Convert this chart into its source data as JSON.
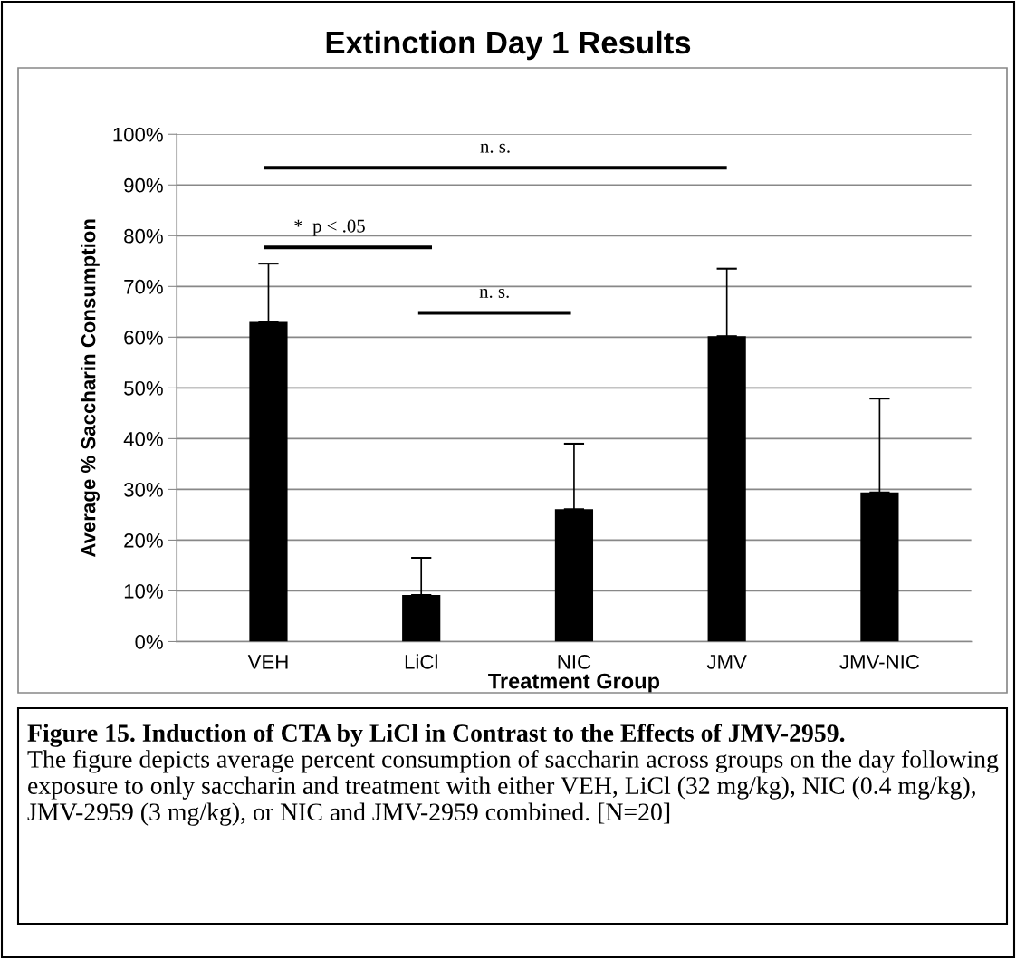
{
  "chart_data": {
    "type": "bar",
    "title": "Extinction Day 1 Results",
    "xlabel": "Treatment Group",
    "ylabel": "Average % Saccharin Consumption",
    "categories": [
      "VEH",
      "LiCl",
      "NIC",
      "JMV",
      "JMV-NIC"
    ],
    "values": [
      63,
      9.2,
      26.1,
      60.2,
      29.4
    ],
    "errors": [
      [
        63,
        74.5
      ],
      [
        9.2,
        16.5
      ],
      [
        26.1,
        39
      ],
      [
        60.2,
        73.5
      ],
      [
        29.4,
        47.9
      ]
    ],
    "color": "#000000",
    "ylim": [
      0,
      100
    ],
    "yticks": [
      {
        "value": 0,
        "label": "0%"
      },
      {
        "value": 10,
        "label": "10%"
      },
      {
        "value": 20,
        "label": "20%"
      },
      {
        "value": 30,
        "label": "30%"
      },
      {
        "value": 40,
        "label": "40%"
      },
      {
        "value": 50,
        "label": "50%"
      },
      {
        "value": 60,
        "label": "60%"
      },
      {
        "value": 70,
        "label": "70%"
      },
      {
        "value": 80,
        "label": "80%"
      },
      {
        "value": 90,
        "label": "90%"
      },
      {
        "value": 100,
        "label": "100%"
      }
    ],
    "grid": "y",
    "annotations": [
      "n. s.",
      "*  p < .05",
      "n. s.",
      "Figure 15. Induction of CTA by LiCl in Contrast to the Effects of JMV-2959.",
      "The figure depicts average percent consumption of saccharin across groups on the day following exposure to only saccharin and treatment with either VEH, LiCl (32 mg/kg), NIC (0.4 mg/kg), JMV-2959 (3 mg/kg), or NIC and JMV-2959 combined. [N=20]"
    ]
  }
}
